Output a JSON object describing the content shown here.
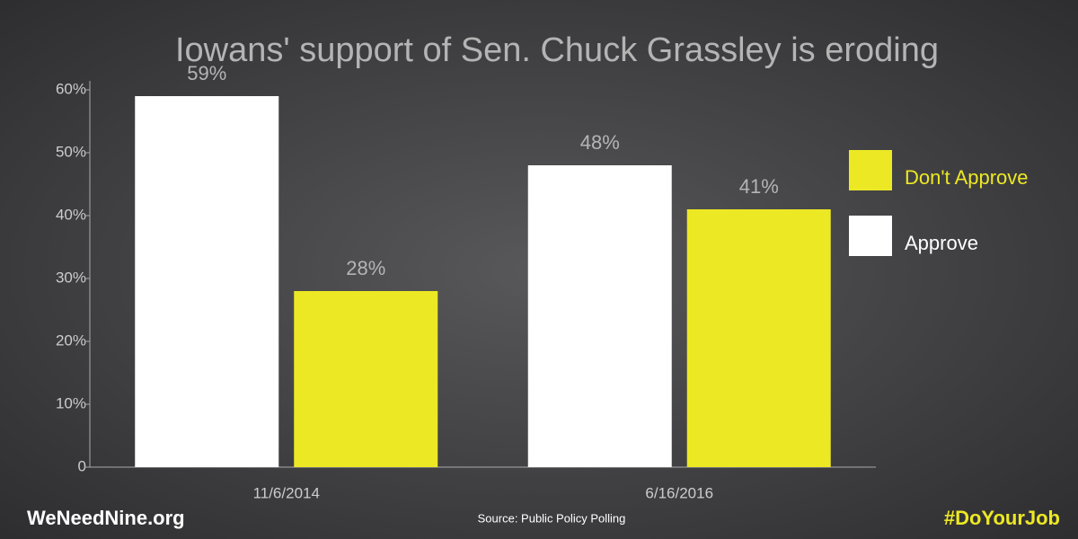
{
  "chart_data": {
    "type": "bar",
    "title": "Iowans' support of Sen. Chuck Grassley is eroding",
    "categories": [
      "11/6/2014",
      "6/16/2016"
    ],
    "series": [
      {
        "name": "Approve",
        "color": "#ffffff",
        "values": [
          59,
          48
        ],
        "value_labels": [
          "59%",
          "48%"
        ]
      },
      {
        "name": "Don't Approve",
        "color": "#ede824",
        "values": [
          28,
          41
        ],
        "value_labels": [
          "28%",
          "41%"
        ]
      }
    ],
    "ylim": [
      0,
      60
    ],
    "yticks": [
      0,
      {
        "value": 10,
        "label": "10%"
      },
      {
        "value": 20,
        "label": "20%"
      },
      {
        "value": 30,
        "label": "30%"
      },
      {
        "value": 40,
        "label": "40%"
      },
      {
        "value": 50,
        "label": "50%"
      },
      {
        "value": 60,
        "label": "60%"
      }
    ],
    "footer_left": "WeNeedNine.org",
    "source": "Source: Public Policy Polling",
    "footer_right": "#DoYourJob"
  }
}
